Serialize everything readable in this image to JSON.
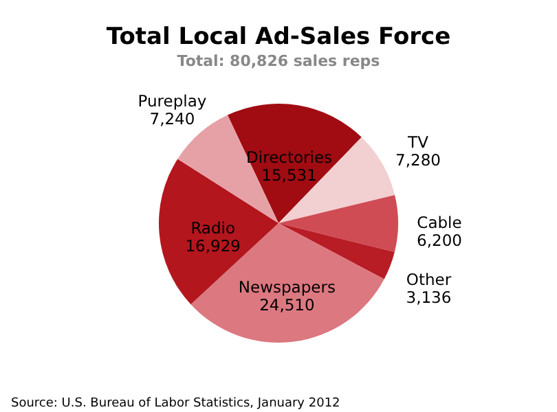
{
  "chart_data": {
    "type": "pie",
    "title": "Total Local Ad-Sales Force",
    "subtitle": "Total: 80,826 sales reps",
    "categories": [
      "Directories",
      "TV",
      "Cable",
      "Other",
      "Newspapers",
      "Radio",
      "Pureplay"
    ],
    "values": [
      15531,
      7280,
      6200,
      3136,
      24510,
      16929,
      7240
    ],
    "colors": [
      "#a00c12",
      "#f2cfd1",
      "#cf4c55",
      "#b81c24",
      "#dc7880",
      "#b3161d",
      "#e6a1a6"
    ],
    "value_labels": [
      "15,531",
      "7,280",
      "6,200",
      "3,136",
      "24,510",
      "16,929",
      "7,240"
    ],
    "annotations": [
      "Source: U.S. Bureau of Labor Statistics, January 2012"
    ]
  }
}
